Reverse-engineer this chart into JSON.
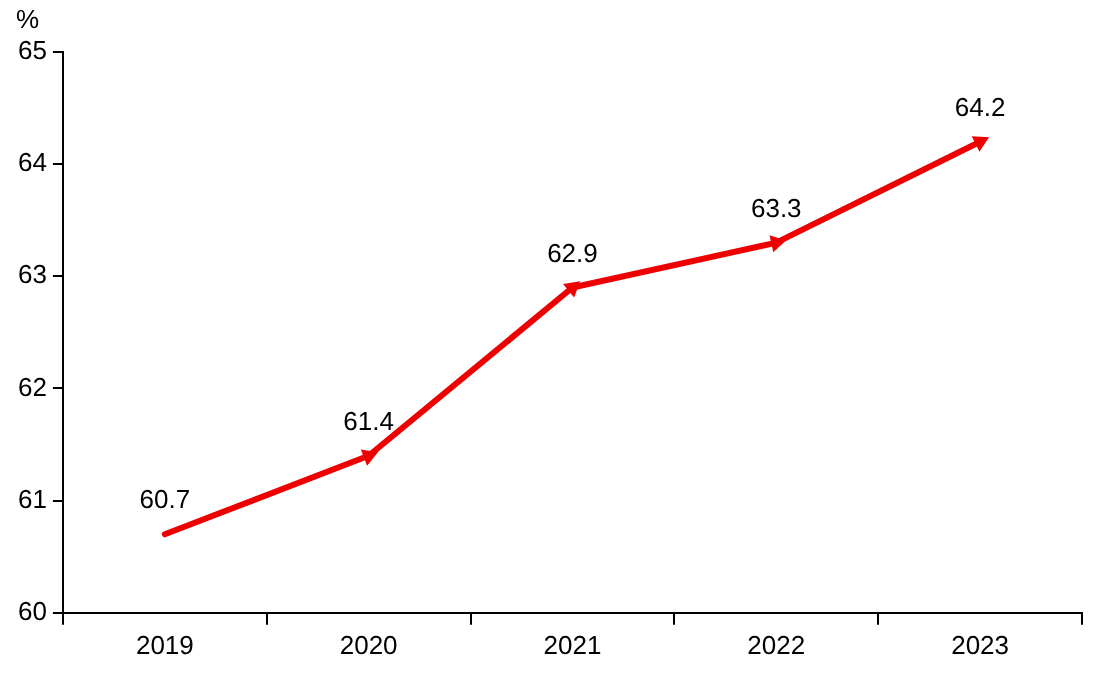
{
  "chart_data": {
    "type": "line",
    "ylabel": "%",
    "categories": [
      "2019",
      "2020",
      "2021",
      "2022",
      "2023"
    ],
    "series": [
      {
        "color": "#ee0000",
        "values": [
          60.7,
          61.4,
          62.9,
          63.3,
          64.2
        ]
      }
    ],
    "ylim": [
      60,
      65
    ],
    "yticks": [
      60,
      61,
      62,
      63,
      64,
      65
    ],
    "grid": false,
    "legend": false,
    "data_labels": true,
    "marker": "triangle",
    "line_style": "solid"
  }
}
